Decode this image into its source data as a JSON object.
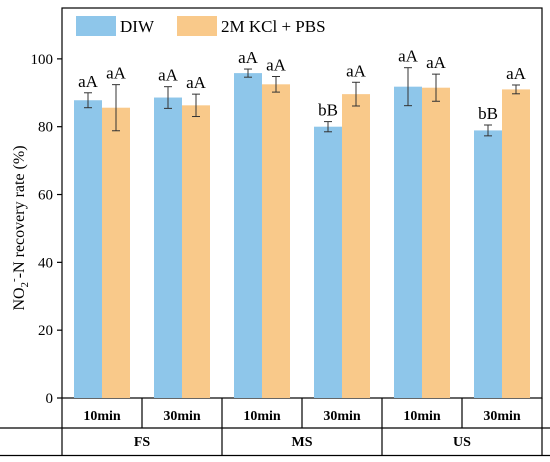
{
  "chart_data": {
    "type": "bar",
    "ylabel_main": "NO",
    "ylabel_sub": "2",
    "ylabel_sup": "-",
    "ylabel_rest": "-N recovery rate (%)",
    "ylim": [
      0,
      115
    ],
    "yticks": [
      "0",
      "20",
      "40",
      "60",
      "80",
      "100"
    ],
    "categories": [
      "10min",
      "30min",
      "10min",
      "30min",
      "10min",
      "30min"
    ],
    "groups": [
      "FS",
      "MS",
      "US"
    ],
    "legend_position": "top-left",
    "series": [
      {
        "name": "DIW",
        "color": "#8ec6ea",
        "values": [
          87.8,
          88.6,
          95.8,
          80.0,
          91.8,
          78.9
        ],
        "errors": [
          2.2,
          3.2,
          1.2,
          1.5,
          5.6,
          1.6
        ],
        "labels": [
          "aA",
          "aA",
          "aA",
          "bB",
          "aA",
          "bB"
        ]
      },
      {
        "name": "2M KCl + PBS",
        "color": "#f9c98a",
        "values": [
          85.6,
          86.3,
          92.5,
          89.6,
          91.5,
          91.0
        ],
        "errors": [
          6.8,
          3.3,
          2.3,
          3.5,
          4.0,
          1.3
        ],
        "labels": [
          "aA",
          "aA",
          "aA",
          "aA",
          "aA",
          "aA"
        ]
      }
    ]
  }
}
